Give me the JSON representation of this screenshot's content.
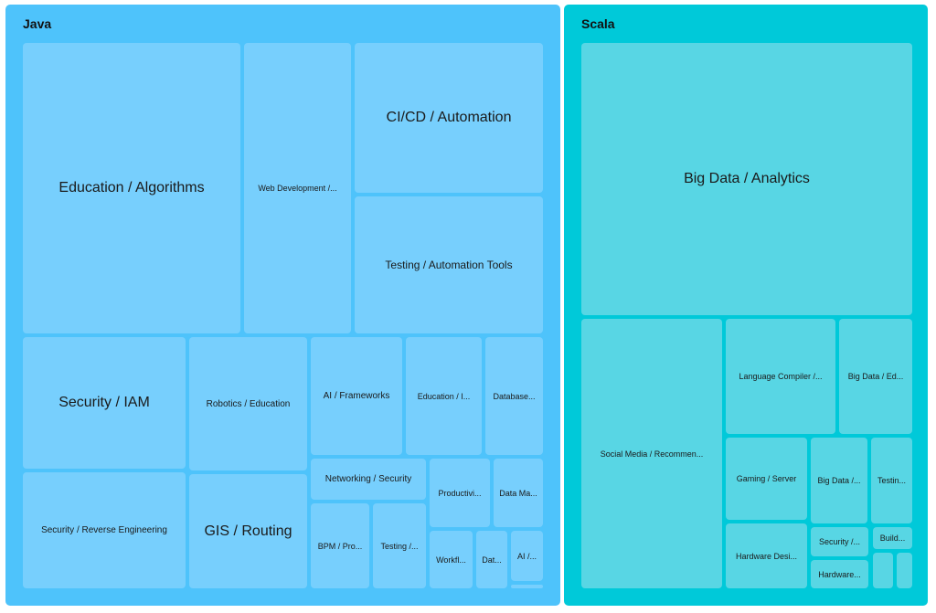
{
  "colors": {
    "java_group": "#4ec3fb",
    "java_tile": "#77cffd",
    "scala_group": "#00c9d9",
    "scala_tile": "#58d6e4"
  },
  "chart_data": {
    "type": "treemap",
    "groups": [
      {
        "name": "Java",
        "items": [
          "Education / Algorithms",
          "Web Development /...",
          "CI/CD / Automation",
          "Testing / Automation Tools",
          "Security / IAM",
          "Robotics / Education",
          "AI / Frameworks",
          "Education / I...",
          "Database...",
          "Networking / Security",
          "Productivi...",
          "Data Ma...",
          "Security / Reverse Engineering",
          "GIS / Routing",
          "BPM / Pro...",
          "Testing /...",
          "Workfl...",
          "Dat...",
          "AI /...",
          ""
        ]
      },
      {
        "name": "Scala",
        "items": [
          "Big Data / Analytics",
          "Social Media / Recommen...",
          "Language Compiler /...",
          "Big Data / Ed...",
          "Gaming / Server",
          "Big Data /...",
          "Testin...",
          "Hardware Desi...",
          "Security /...",
          "Build...",
          "Hardware...",
          "",
          ""
        ]
      }
    ]
  }
}
